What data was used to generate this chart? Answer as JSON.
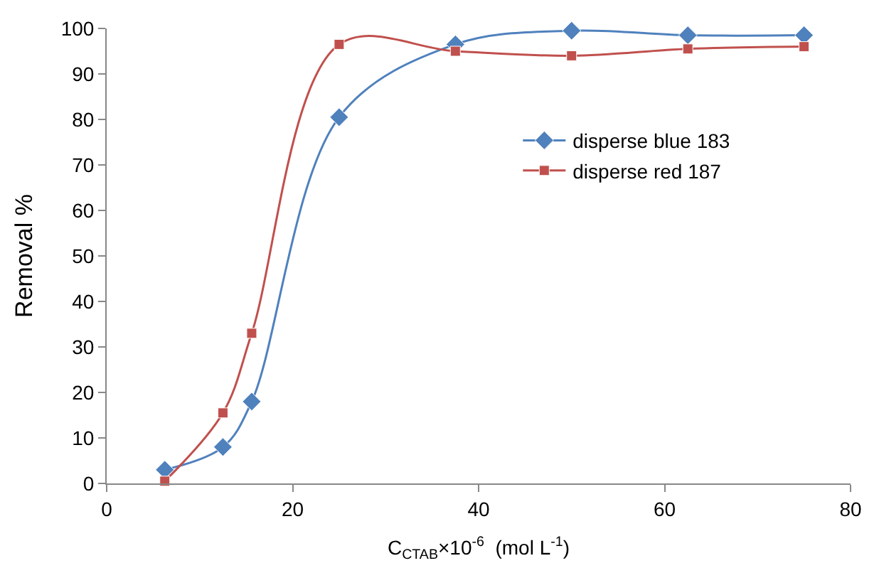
{
  "chart_data": {
    "type": "line",
    "xlabel": "C$_{CTAB}$×10$^{-6}$  (mol L$^{-1}$)",
    "ylabel": "Removal %",
    "x": [
      6.25,
      12.5,
      15.6,
      25,
      37.5,
      50,
      62.5,
      75
    ],
    "series": [
      {
        "name": "disperse blue 183",
        "color": "#4f81bd",
        "marker": "diamond",
        "values": [
          3,
          8,
          18,
          80.5,
          96.5,
          99.5,
          98.5,
          98.5
        ]
      },
      {
        "name": "disperse red 187",
        "color": "#c0504d",
        "marker": "square",
        "values": [
          0.5,
          15.5,
          33,
          96.5,
          95,
          94,
          95.5,
          96
        ]
      }
    ],
    "xlim": [
      0,
      80
    ],
    "xticks": [
      0,
      20,
      40,
      60,
      80
    ],
    "ylim": [
      0,
      100
    ],
    "yticks": [
      0,
      10,
      20,
      30,
      40,
      50,
      60,
      70,
      80,
      90,
      100
    ],
    "legend": "right",
    "line_style": "solid"
  }
}
